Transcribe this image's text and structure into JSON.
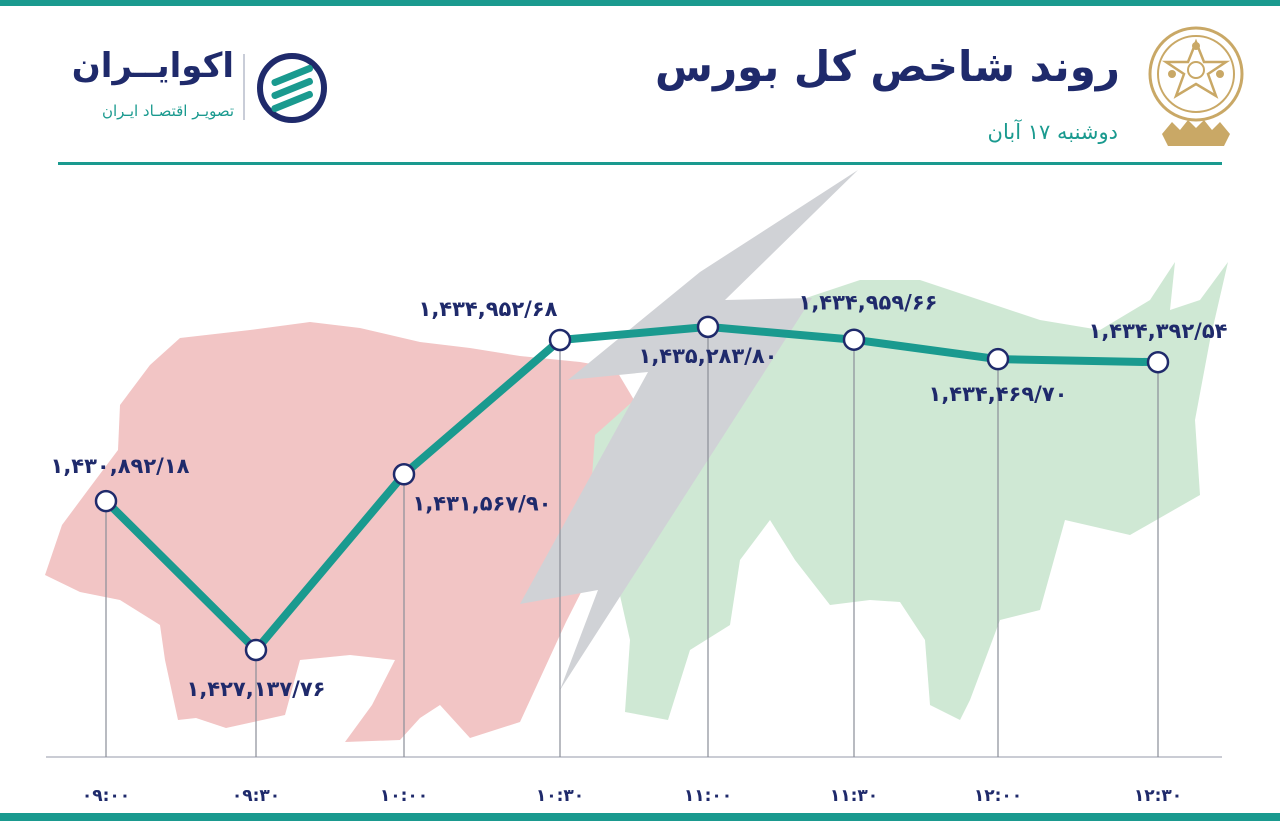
{
  "header": {
    "title": "روند شاخص کل بورس",
    "date": "دوشنبه ۱۷ آبان"
  },
  "brand": {
    "name": "اکوایــران",
    "tagline": "تصویـر اقتصـاد ایـران"
  },
  "colors": {
    "line": "#1a9a8f",
    "text": "#1f2a6b",
    "bear": "#f2c5c5",
    "bull": "#cfe8d4",
    "arrow": "#d0d2d6",
    "seal": "#c9a866"
  },
  "icons": {
    "seal": "stock-exchange-seal-icon",
    "brand": "ecoiran-logo-icon",
    "background": "bear-bull-icon"
  },
  "chart_data": {
    "type": "line",
    "categories": [
      "۰۹:۰۰",
      "۰۹:۳۰",
      "۱۰:۰۰",
      "۱۰:۳۰",
      "۱۱:۰۰",
      "۱۱:۳۰",
      "۱۲:۰۰",
      "۱۲:۳۰"
    ],
    "values": [
      1430892.18,
      1427137.76,
      1431567.9,
      1434952.68,
      1435283.8,
      1434959.66,
      1434469.7,
      1434392.54
    ],
    "value_labels": [
      "۱,۴۳۰,۸۹۲/۱۸",
      "۱,۴۲۷,۱۳۷/۷۶",
      "۱,۴۳۱,۵۶۷/۹۰",
      "۱,۴۳۴,۹۵۲/۶۸",
      "۱,۴۳۵,۲۸۳/۸۰",
      "۱,۴۳۴,۹۵۹/۶۶",
      "۱,۴۳۴,۴۶۹/۷۰",
      "۱,۴۳۴,۳۹۲/۵۴"
    ],
    "ylim": [
      1425000,
      1437000
    ],
    "grid": false,
    "legend": "none"
  }
}
